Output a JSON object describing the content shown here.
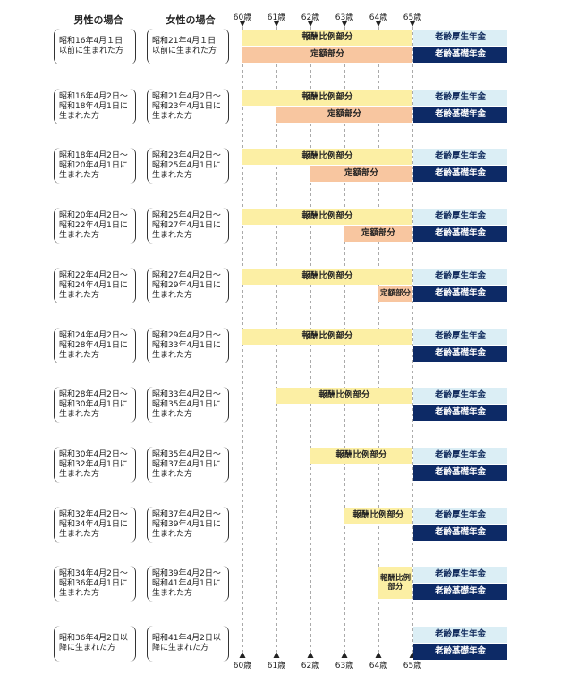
{
  "header": {
    "male": "男性の場合",
    "female": "女性の場合"
  },
  "ages": [
    "60歳",
    "61歳",
    "62歳",
    "63歳",
    "64歳",
    "65歳"
  ],
  "labels": {
    "hirei": "報酬比例部分",
    "teigaku": "定額部分",
    "kosei": "老齢厚生年金",
    "kiso": "老齢基礎年金"
  },
  "rows": [
    {
      "male": "昭和16年4月１日以前に生まれた方",
      "female": "昭和21年4月１日以前に生まれた方"
    },
    {
      "male": "昭和16年4月2日～昭和18年4月1日に生まれた方",
      "female": "昭和21年4月2日～昭和23年4月1日に生まれた方"
    },
    {
      "male": "昭和18年4月2日～昭和20年4月1日に生まれた方",
      "female": "昭和23年4月2日～昭和25年4月1日に生まれた方"
    },
    {
      "male": "昭和20年4月2日～昭和22年4月1日に生まれた方",
      "female": "昭和25年4月2日～昭和27年4月1日に生まれた方"
    },
    {
      "male": "昭和22年4月2日～昭和24年4月1日に生まれた方",
      "female": "昭和27年4月2日～昭和29年4月1日に生まれた方"
    },
    {
      "male": "昭和24年4月2日～昭和28年4月1日に生まれた方",
      "female": "昭和29年4月2日～昭和33年4月1日に生まれた方"
    },
    {
      "male": "昭和28年4月2日～昭和30年4月1日に生まれた方",
      "female": "昭和33年4月2日～昭和35年4月1日に生まれた方"
    },
    {
      "male": "昭和30年4月2日～昭和32年4月1日に生まれた方",
      "female": "昭和35年4月2日～昭和37年4月1日に生まれた方"
    },
    {
      "male": "昭和32年4月2日～昭和34年4月1日に生まれた方",
      "female": "昭和37年4月2日～昭和39年4月1日に生まれた方"
    },
    {
      "male": "昭和34年4月2日～昭和36年4月1日に生まれた方",
      "female": "昭和39年4月2日～昭和41年4月1日に生まれた方"
    },
    {
      "male": "昭和36年4月2日以降に生まれた方",
      "female": "昭和41年4月2日以降に生まれた方"
    }
  ]
}
